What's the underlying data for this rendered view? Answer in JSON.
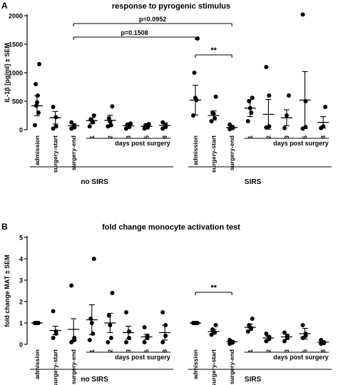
{
  "chart_data": [
    {
      "type": "scatter",
      "panel_label": "A",
      "title": "response to pyrogenic stimulus",
      "ylabel": "IL-1β [pg/ml] ± SEM",
      "ylim": [
        0,
        2000
      ],
      "yticks": [
        0,
        500,
        1000,
        1500,
        2000
      ],
      "categories": [
        "admission",
        "surgery-start",
        "surgery-end",
        "1",
        "2",
        "3",
        "5",
        "8",
        "admission",
        "surgery-start",
        "surgery-end",
        "1",
        "2",
        "3",
        "5",
        "8"
      ],
      "groups": [
        {
          "label": "no SIRS",
          "sublabel": "days post surgery"
        },
        {
          "label": "SIRS",
          "sublabel": "days post surgery"
        }
      ],
      "series": [
        {
          "group": "no SIRS",
          "category": "admission",
          "mean": 420,
          "sem": 175,
          "points": [
            80,
            300,
            420,
            480,
            600,
            800,
            1150
          ]
        },
        {
          "group": "no SIRS",
          "category": "surgery-start",
          "mean": 210,
          "sem": 110,
          "points": [
            20,
            60,
            220,
            400
          ]
        },
        {
          "group": "no SIRS",
          "category": "surgery-end",
          "mean": 70,
          "sem": 35,
          "points": [
            20,
            40,
            80,
            130
          ]
        },
        {
          "group": "no SIRS",
          "category": "1",
          "mean": 160,
          "sem": 50,
          "points": [
            60,
            130,
            160,
            180,
            250
          ]
        },
        {
          "group": "no SIRS",
          "category": "2",
          "mean": 165,
          "sem": 90,
          "points": [
            60,
            80,
            140,
            200,
            410
          ]
        },
        {
          "group": "no SIRS",
          "category": "3",
          "mean": 70,
          "sem": 30,
          "points": [
            20,
            50,
            70,
            90,
            110
          ]
        },
        {
          "group": "no SIRS",
          "category": "5",
          "mean": 60,
          "sem": 25,
          "points": [
            20,
            40,
            60,
            80,
            100
          ]
        },
        {
          "group": "no SIRS",
          "category": "8",
          "mean": 75,
          "sem": 45,
          "points": [
            20,
            50,
            90,
            130
          ]
        },
        {
          "group": "SIRS",
          "category": "admission",
          "mean": 520,
          "sem": 260,
          "points": [
            250,
            520,
            560,
            1000,
            1600
          ]
        },
        {
          "group": "SIRS",
          "category": "surgery-start",
          "mean": 250,
          "sem": 80,
          "points": [
            150,
            200,
            280,
            300,
            580
          ]
        },
        {
          "group": "SIRS",
          "category": "surgery-end",
          "mean": 40,
          "sem": 20,
          "points": [
            10,
            30,
            50,
            90
          ]
        },
        {
          "group": "SIRS",
          "category": "1",
          "mean": 380,
          "sem": 150,
          "points": [
            150,
            300,
            380,
            500,
            560
          ]
        },
        {
          "group": "SIRS",
          "category": "2",
          "mean": 270,
          "sem": 260,
          "points": [
            40,
            60,
            600,
            1100
          ]
        },
        {
          "group": "SIRS",
          "category": "3",
          "mean": 210,
          "sem": 140,
          "points": [
            30,
            250,
            600
          ]
        },
        {
          "group": "SIRS",
          "category": "5",
          "mean": 520,
          "sem": 500,
          "points": [
            20,
            50,
            500,
            2020
          ]
        },
        {
          "group": "SIRS",
          "category": "8",
          "mean": 130,
          "sem": 100,
          "points": [
            30,
            60,
            400
          ]
        }
      ],
      "annotations": [
        {
          "text": "p=0.0952",
          "from_group": "no SIRS",
          "from": "surgery-end",
          "to_group": "SIRS",
          "to": "surgery-end"
        },
        {
          "text": "p=0.1508",
          "from_group": "no SIRS",
          "from": "surgery-end",
          "to_group": "SIRS",
          "to": "admission"
        },
        {
          "text": "**",
          "from_group": "SIRS",
          "from": "admission",
          "to_group": "SIRS",
          "to": "surgery-end"
        }
      ]
    },
    {
      "type": "scatter",
      "panel_label": "B",
      "title": "fold change monocyte activation test",
      "ylabel": "fold change MAT ± SEM",
      "ylim": [
        0,
        5
      ],
      "yticks": [
        0,
        1,
        2,
        3,
        4,
        5
      ],
      "categories": [
        "admission",
        "surgery-start",
        "surgery-end",
        "1",
        "2",
        "3",
        "5",
        "8",
        "admission",
        "surgery-start",
        "surgery-end",
        "1",
        "2",
        "3",
        "5",
        "8"
      ],
      "groups": [
        {
          "label": "no SIRS",
          "sublabel": "days post surgery"
        },
        {
          "label": "SIRS",
          "sublabel": "days post surgery"
        }
      ],
      "series": [
        {
          "group": "no SIRS",
          "category": "admission",
          "mean": 1.0,
          "sem": 0,
          "points": [
            1,
            1,
            1,
            1,
            1,
            1
          ]
        },
        {
          "group": "no SIRS",
          "category": "surgery-start",
          "mean": 0.65,
          "sem": 0.2,
          "points": [
            0.3,
            0.5,
            0.6,
            1.55
          ]
        },
        {
          "group": "no SIRS",
          "category": "surgery-end",
          "mean": 0.7,
          "sem": 0.5,
          "points": [
            0.1,
            0.2,
            0.3,
            2.75
          ]
        },
        {
          "group": "no SIRS",
          "category": "1",
          "mean": 1.15,
          "sem": 0.7,
          "points": [
            0.2,
            0.5,
            1.0,
            1.2,
            4.0
          ]
        },
        {
          "group": "no SIRS",
          "category": "2",
          "mean": 1.0,
          "sem": 0.45,
          "points": [
            0.1,
            0.3,
            0.9,
            1.35,
            2.4
          ]
        },
        {
          "group": "no SIRS",
          "category": "3",
          "mean": 0.55,
          "sem": 0.3,
          "points": [
            0.1,
            0.3,
            0.6,
            1.5
          ]
        },
        {
          "group": "no SIRS",
          "category": "5",
          "mean": 0.35,
          "sem": 0.12,
          "points": [
            0.1,
            0.3,
            0.4,
            0.8
          ]
        },
        {
          "group": "no SIRS",
          "category": "8",
          "mean": 0.55,
          "sem": 0.35,
          "points": [
            0.1,
            0.4,
            0.9,
            1.5
          ]
        },
        {
          "group": "SIRS",
          "category": "admission",
          "mean": 1.0,
          "sem": 0,
          "points": [
            1,
            1,
            1,
            1,
            1
          ]
        },
        {
          "group": "SIRS",
          "category": "surgery-start",
          "mean": 0.6,
          "sem": 0.1,
          "points": [
            0.45,
            0.55,
            0.6,
            0.7,
            0.9
          ]
        },
        {
          "group": "SIRS",
          "category": "surgery-end",
          "mean": 0.12,
          "sem": 0.05,
          "points": [
            0.03,
            0.08,
            0.12,
            0.2
          ]
        },
        {
          "group": "SIRS",
          "category": "1",
          "mean": 0.8,
          "sem": 0.15,
          "points": [
            0.6,
            0.75,
            0.8,
            0.9,
            1.2
          ]
        },
        {
          "group": "SIRS",
          "category": "2",
          "mean": 0.3,
          "sem": 0.08,
          "points": [
            0.15,
            0.25,
            0.35,
            0.5
          ]
        },
        {
          "group": "SIRS",
          "category": "3",
          "mean": 0.35,
          "sem": 0.12,
          "points": [
            0.15,
            0.3,
            0.4,
            0.55
          ]
        },
        {
          "group": "SIRS",
          "category": "5",
          "mean": 0.5,
          "sem": 0.25,
          "points": [
            0.3,
            0.4,
            0.5,
            0.9
          ]
        },
        {
          "group": "SIRS",
          "category": "8",
          "mean": 0.1,
          "sem": 0.05,
          "points": [
            0.03,
            0.06,
            0.1,
            0.2
          ]
        }
      ],
      "annotations": [
        {
          "text": "**",
          "from_group": "SIRS",
          "from": "admission",
          "to_group": "SIRS",
          "to": "surgery-end"
        }
      ]
    }
  ]
}
